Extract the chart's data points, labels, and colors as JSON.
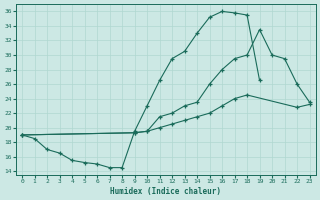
{
  "xlabel": "Humidex (Indice chaleur)",
  "bg_color": "#cce8e4",
  "line_color": "#1a6b5a",
  "grid_color": "#b0d8d0",
  "xlim": [
    -0.5,
    23.5
  ],
  "ylim": [
    13.5,
    37
  ],
  "xticks": [
    0,
    1,
    2,
    3,
    4,
    5,
    6,
    7,
    8,
    9,
    10,
    11,
    12,
    13,
    14,
    15,
    16,
    17,
    18,
    19,
    20,
    21,
    22,
    23
  ],
  "yticks": [
    14,
    16,
    18,
    20,
    22,
    24,
    26,
    28,
    30,
    32,
    34,
    36
  ],
  "line1_x": [
    0,
    1,
    2,
    3,
    4,
    5,
    6,
    7,
    8,
    9,
    10,
    11,
    12,
    13,
    14,
    15,
    16,
    17,
    18,
    19
  ],
  "line1_y": [
    19,
    18.5,
    17,
    16.5,
    15.5,
    15.2,
    15.0,
    14.5,
    14.5,
    19.5,
    23,
    26.5,
    29.5,
    30.5,
    33,
    35.2,
    36.0,
    35.8,
    35.5,
    26.5
  ],
  "line2_x": [
    0,
    9,
    10,
    11,
    12,
    13,
    14,
    15,
    16,
    17,
    18,
    19,
    20,
    21,
    22,
    23
  ],
  "line2_y": [
    19,
    19.3,
    19.5,
    21.5,
    22,
    23,
    23.5,
    26.0,
    28.0,
    29.5,
    30.0,
    33.5,
    30.0,
    29.5,
    26.0,
    23.5
  ],
  "line3_x": [
    0,
    9,
    10,
    11,
    12,
    13,
    14,
    15,
    16,
    17,
    18,
    22,
    23
  ],
  "line3_y": [
    19,
    19.3,
    19.5,
    20.0,
    20.5,
    21.0,
    21.5,
    22.0,
    23.0,
    24.0,
    24.5,
    22.8,
    23.2
  ]
}
